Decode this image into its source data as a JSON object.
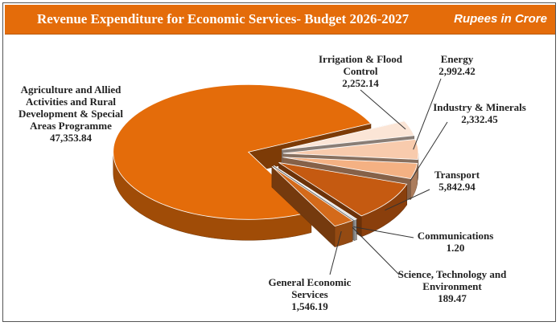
{
  "chart_data": {
    "type": "pie",
    "title": "Revenue Expenditure for Economic Services- Budget 2026-2027",
    "subtitle": "Rupees in Crore",
    "categories": [
      "Irrigation & Flood Control",
      "Energy",
      "Industry & Minerals",
      "Transport",
      "Communications",
      "Science, Technology and Environment",
      "General Economic Services",
      "Agriculture and Allied Activities and Rural Development & Special Areas Programme"
    ],
    "values": [
      2252.14,
      2992.42,
      2332.45,
      5842.94,
      1.2,
      189.47,
      1546.19,
      47353.84
    ],
    "value_labels": [
      "2,252.14",
      "2,992.42",
      "2,332.45",
      "5,842.94",
      "1.20",
      "189.47",
      "1,546.19",
      "47,353.84"
    ],
    "colors": [
      "#fbe5d6",
      "#f8cbad",
      "#f4b183",
      "#c55a11",
      "#843c0c",
      "#d9d9d9",
      "#d46a1a",
      "#e46c0a"
    ]
  }
}
